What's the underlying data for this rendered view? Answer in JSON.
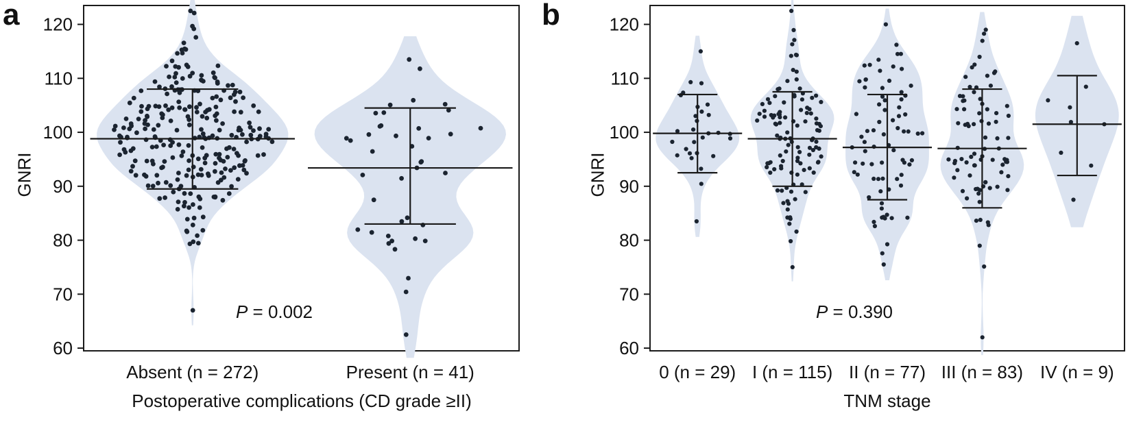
{
  "figure": {
    "background": "#ffffff",
    "violin_fill": "#dbe3f0",
    "dot_color": "#1b2430",
    "line_color": "#1a1a1a"
  },
  "chart_data": [
    {
      "type": "violin",
      "panel": "a",
      "ylabel": "GNRI",
      "xlabel": "Postoperative complications (CD grade ≥II)",
      "p_symbol": "P",
      "p_rest": " = 0.002",
      "ylim": [
        59.5,
        123.5
      ],
      "yticks": [
        60,
        70,
        80,
        90,
        100,
        110,
        120
      ],
      "groups": [
        {
          "label": "Absent (n = 272)",
          "n": 272,
          "mean": 98.8,
          "sd_upper": 108.0,
          "sd_lower": 89.5,
          "min": 67.0,
          "max": 122.5
        },
        {
          "label": "Present (n = 41)",
          "n": 41,
          "mean": 93.4,
          "sd_upper": 104.5,
          "sd_lower": 83.0,
          "min": 62.5,
          "max": 113.5
        }
      ]
    },
    {
      "type": "violin",
      "panel": "b",
      "ylabel": "GNRI",
      "xlabel": "TNM stage",
      "p_symbol": "P",
      "p_rest": " = 0.390",
      "ylim": [
        59.5,
        123.5
      ],
      "yticks": [
        60,
        70,
        80,
        90,
        100,
        110,
        120
      ],
      "groups": [
        {
          "label": "0 (n = 29)",
          "n": 29,
          "mean": 99.8,
          "sd_upper": 107.0,
          "sd_lower": 92.5,
          "min": 83.5,
          "max": 115.0
        },
        {
          "label": "I (n = 115)",
          "n": 115,
          "mean": 98.8,
          "sd_upper": 107.5,
          "sd_lower": 90.0,
          "min": 75.0,
          "max": 122.5
        },
        {
          "label": "II (n = 77)",
          "n": 77,
          "mean": 97.2,
          "sd_upper": 107.0,
          "sd_lower": 87.5,
          "min": 75.5,
          "max": 120.0
        },
        {
          "label": "III (n = 83)",
          "n": 83,
          "mean": 97.0,
          "sd_upper": 108.0,
          "sd_lower": 86.0,
          "min": 62.0,
          "max": 119.0
        },
        {
          "label": "IV (n = 9)",
          "n": 9,
          "mean": 101.5,
          "sd_upper": 110.5,
          "sd_lower": 92.0,
          "min": 87.5,
          "max": 116.5
        }
      ]
    }
  ]
}
